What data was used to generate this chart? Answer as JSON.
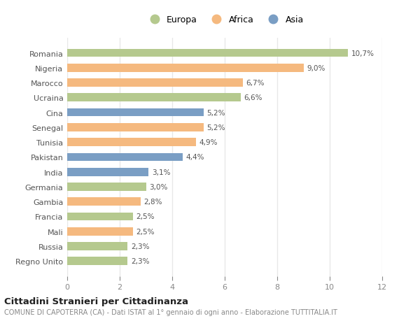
{
  "categories": [
    "Romania",
    "Nigeria",
    "Marocco",
    "Ucraina",
    "Cina",
    "Senegal",
    "Tunisia",
    "Pakistan",
    "India",
    "Germania",
    "Gambia",
    "Francia",
    "Mali",
    "Russia",
    "Regno Unito"
  ],
  "values": [
    10.7,
    9.0,
    6.7,
    6.6,
    5.2,
    5.2,
    4.9,
    4.4,
    3.1,
    3.0,
    2.8,
    2.5,
    2.5,
    2.3,
    2.3
  ],
  "labels": [
    "10,7%",
    "9,0%",
    "6,7%",
    "6,6%",
    "5,2%",
    "5,2%",
    "4,9%",
    "4,4%",
    "3,1%",
    "3,0%",
    "2,8%",
    "2,5%",
    "2,5%",
    "2,3%",
    "2,3%"
  ],
  "continents": [
    "Europa",
    "Africa",
    "Africa",
    "Europa",
    "Asia",
    "Africa",
    "Africa",
    "Asia",
    "Asia",
    "Europa",
    "Africa",
    "Europa",
    "Africa",
    "Europa",
    "Europa"
  ],
  "colors": {
    "Europa": "#b5c98e",
    "Africa": "#f5b97f",
    "Asia": "#7a9ec4"
  },
  "xlim": [
    0,
    12
  ],
  "xticks": [
    0,
    2,
    4,
    6,
    8,
    10,
    12
  ],
  "title": "Cittadini Stranieri per Cittadinanza",
  "subtitle": "COMUNE DI CAPOTERRA (CA) - Dati ISTAT al 1° gennaio di ogni anno - Elaborazione TUTTITALIA.IT",
  "background_color": "#ffffff",
  "grid_color": "#e8e8e8",
  "bar_height": 0.55
}
